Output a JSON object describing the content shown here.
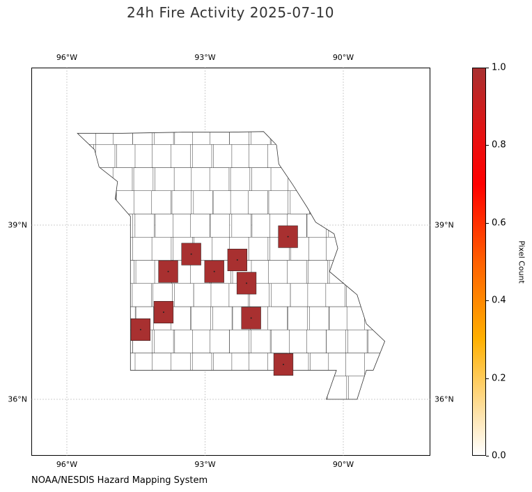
{
  "title": "24h Fire Activity 2025-07-10",
  "source": "NOAA/NESDIS Hazard Mapping System",
  "map": {
    "state": "Missouri",
    "lon_range": [
      -96.8,
      -88.1
    ],
    "lat_range": [
      35.0,
      41.0
    ],
    "lon_ticks": [
      {
        "value": -96,
        "label": "96°W"
      },
      {
        "value": -93,
        "label": "93°W"
      },
      {
        "value": -90,
        "label": "90°W"
      }
    ],
    "lat_ticks": [
      {
        "value": 39,
        "label": "39°N"
      },
      {
        "value": 36,
        "label": "36°N"
      }
    ],
    "fill_color": "#a83030",
    "county_outline_color": "#333333",
    "gridlines": true,
    "fire_counties": [
      {
        "lon": -91.2,
        "lat": 38.8,
        "pixel_count": 1
      },
      {
        "lon": -93.3,
        "lat": 38.5,
        "pixel_count": 1
      },
      {
        "lon": -92.3,
        "lat": 38.4,
        "pixel_count": 1
      },
      {
        "lon": -93.8,
        "lat": 38.2,
        "pixel_count": 1
      },
      {
        "lon": -92.8,
        "lat": 38.2,
        "pixel_count": 1
      },
      {
        "lon": -92.1,
        "lat": 38.0,
        "pixel_count": 1
      },
      {
        "lon": -93.9,
        "lat": 37.5,
        "pixel_count": 1
      },
      {
        "lon": -92.0,
        "lat": 37.4,
        "pixel_count": 1
      },
      {
        "lon": -94.4,
        "lat": 37.2,
        "pixel_count": 1
      },
      {
        "lon": -91.3,
        "lat": 36.6,
        "pixel_count": 1
      }
    ]
  },
  "colorbar": {
    "label": "Pixel Count",
    "min": 0.0,
    "max": 1.0,
    "ticks": [
      "0.0",
      "0.2",
      "0.4",
      "0.6",
      "0.8",
      "1.0"
    ],
    "colors": [
      "#ffffff",
      "#fde4b0",
      "#ffb000",
      "#ff6000",
      "#ff0000",
      "#a83030"
    ]
  }
}
